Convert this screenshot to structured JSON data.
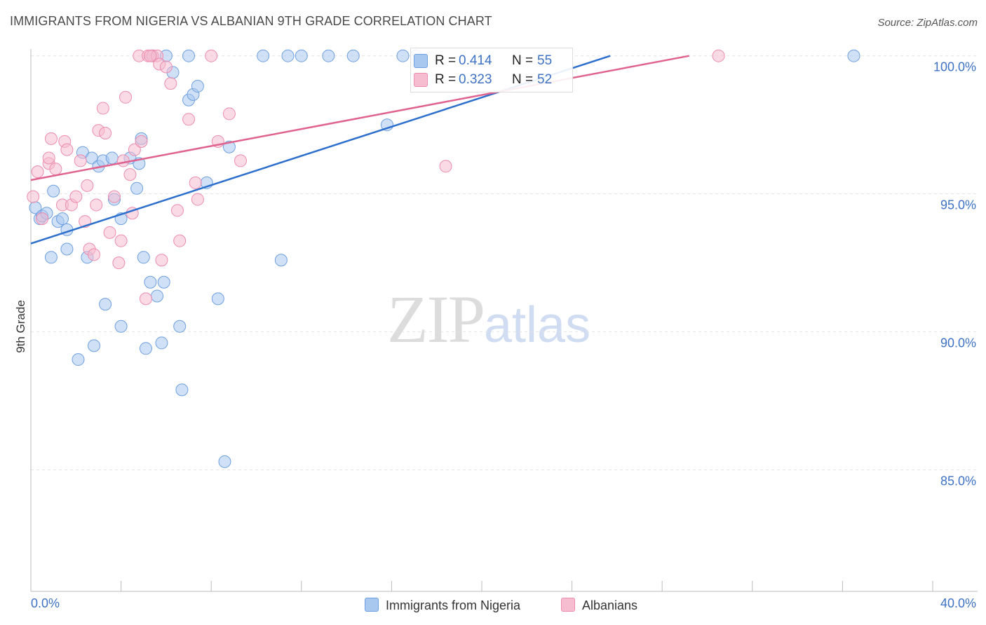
{
  "header": {
    "title": "IMMIGRANTS FROM NIGERIA VS ALBANIAN 9TH GRADE CORRELATION CHART",
    "source": "Source: ZipAtlas.com"
  },
  "watermark": {
    "zip": "ZIP",
    "atlas": "atlas"
  },
  "legend": {
    "rows": [
      {
        "r_label": "R =",
        "r_value": "0.414",
        "n_label": "N =",
        "n_value": "55",
        "color": "#a9c8f0"
      },
      {
        "r_label": "R =",
        "r_value": "0.323",
        "n_label": "N =",
        "n_value": "52",
        "color": "#f6bcd0"
      }
    ]
  },
  "bottom_legend": {
    "series1": "Immigrants from Nigeria",
    "series2": "Albanians"
  },
  "chart_data": {
    "type": "scatter",
    "title": "IMMIGRANTS FROM NIGERIA VS ALBANIAN 9TH GRADE CORRELATION CHART",
    "xlabel": "",
    "ylabel": "9th Grade",
    "xlim": [
      0,
      40
    ],
    "ylim": [
      80.6,
      100.5
    ],
    "x_tick_labels": [
      "0.0%",
      "40.0%"
    ],
    "y_ticks": [
      {
        "value": 100,
        "label": "100.0%"
      },
      {
        "value": 95,
        "label": "95.0%"
      },
      {
        "value": 90,
        "label": "90.0%"
      },
      {
        "value": 85,
        "label": "85.0%"
      }
    ],
    "series": [
      {
        "name": "Immigrants from Nigeria",
        "color": "#a9c8f0",
        "stroke": "#6e9fe0",
        "line_color": "#2d6fcc",
        "trend": {
          "x": [
            0,
            25.7
          ],
          "y": [
            93.2,
            100
          ]
        },
        "points": [
          [
            0.2,
            94.5
          ],
          [
            0.4,
            94.1
          ],
          [
            0.5,
            94.2
          ],
          [
            0.7,
            94.3
          ],
          [
            1.0,
            95.1
          ],
          [
            1.2,
            94.0
          ],
          [
            1.4,
            94.1
          ],
          [
            1.6,
            93.7
          ],
          [
            0.9,
            92.7
          ],
          [
            1.6,
            93.0
          ],
          [
            2.5,
            92.7
          ],
          [
            2.3,
            96.5
          ],
          [
            2.7,
            96.3
          ],
          [
            3.0,
            96.0
          ],
          [
            3.2,
            96.2
          ],
          [
            3.6,
            96.3
          ],
          [
            3.7,
            94.8
          ],
          [
            4.0,
            94.1
          ],
          [
            4.4,
            96.3
          ],
          [
            4.7,
            95.2
          ],
          [
            4.8,
            96.1
          ],
          [
            4.9,
            97.0
          ],
          [
            5.0,
            92.7
          ],
          [
            5.3,
            91.8
          ],
          [
            5.4,
            100.0
          ],
          [
            5.6,
            91.3
          ],
          [
            5.9,
            91.8
          ],
          [
            6.3,
            99.4
          ],
          [
            6.6,
            90.2
          ],
          [
            7.0,
            98.4
          ],
          [
            7.2,
            98.6
          ],
          [
            7.4,
            98.9
          ],
          [
            7.8,
            95.4
          ],
          [
            8.3,
            91.2
          ],
          [
            8.8,
            96.7
          ],
          [
            3.3,
            91.0
          ],
          [
            4.0,
            90.2
          ],
          [
            2.8,
            89.5
          ],
          [
            2.1,
            89.0
          ],
          [
            5.1,
            89.4
          ],
          [
            5.8,
            89.6
          ],
          [
            6.7,
            87.9
          ],
          [
            8.6,
            85.3
          ],
          [
            6.0,
            100.0
          ],
          [
            7.0,
            100.0
          ],
          [
            10.3,
            100.0
          ],
          [
            11.4,
            100.0
          ],
          [
            12.0,
            100.0
          ],
          [
            13.2,
            100.0
          ],
          [
            14.3,
            100.0
          ],
          [
            15.8,
            97.5
          ],
          [
            11.1,
            92.6
          ],
          [
            16.5,
            100.0
          ],
          [
            17.1,
            100.0
          ],
          [
            36.5,
            100.0
          ]
        ]
      },
      {
        "name": "Albanians",
        "color": "#f6bcd0",
        "stroke": "#ec8cae",
        "line_color": "#e0628f",
        "trend": {
          "x": [
            0,
            29.2
          ],
          "y": [
            95.5,
            100
          ]
        },
        "points": [
          [
            0.1,
            94.9
          ],
          [
            0.3,
            95.8
          ],
          [
            0.5,
            94.1
          ],
          [
            0.8,
            96.1
          ],
          [
            0.8,
            96.3
          ],
          [
            0.9,
            97.0
          ],
          [
            1.1,
            95.9
          ],
          [
            1.4,
            94.6
          ],
          [
            1.5,
            96.9
          ],
          [
            1.6,
            96.6
          ],
          [
            1.8,
            94.6
          ],
          [
            2.0,
            94.9
          ],
          [
            2.2,
            96.2
          ],
          [
            2.5,
            95.3
          ],
          [
            2.6,
            93.0
          ],
          [
            2.8,
            92.8
          ],
          [
            2.9,
            94.6
          ],
          [
            3.0,
            97.3
          ],
          [
            3.2,
            98.1
          ],
          [
            3.3,
            97.2
          ],
          [
            3.5,
            93.6
          ],
          [
            3.7,
            94.9
          ],
          [
            3.9,
            92.5
          ],
          [
            4.1,
            96.2
          ],
          [
            4.2,
            98.5
          ],
          [
            4.4,
            95.7
          ],
          [
            4.5,
            94.3
          ],
          [
            4.6,
            96.6
          ],
          [
            4.8,
            100.0
          ],
          [
            4.9,
            96.9
          ],
          [
            5.1,
            91.2
          ],
          [
            5.2,
            100.0
          ],
          [
            5.4,
            100.0
          ],
          [
            5.6,
            100.0
          ],
          [
            5.7,
            99.7
          ],
          [
            5.8,
            92.6
          ],
          [
            6.0,
            99.6
          ],
          [
            6.2,
            99.0
          ],
          [
            6.5,
            94.4
          ],
          [
            6.6,
            93.3
          ],
          [
            7.0,
            97.7
          ],
          [
            7.3,
            95.4
          ],
          [
            7.4,
            94.8
          ],
          [
            8.0,
            100.0
          ],
          [
            8.3,
            96.9
          ],
          [
            8.8,
            97.9
          ],
          [
            9.3,
            96.2
          ],
          [
            18.4,
            96.0
          ],
          [
            30.5,
            100.0
          ],
          [
            5.3,
            100.0
          ],
          [
            4.0,
            93.3
          ],
          [
            2.4,
            94.0
          ]
        ]
      }
    ]
  }
}
